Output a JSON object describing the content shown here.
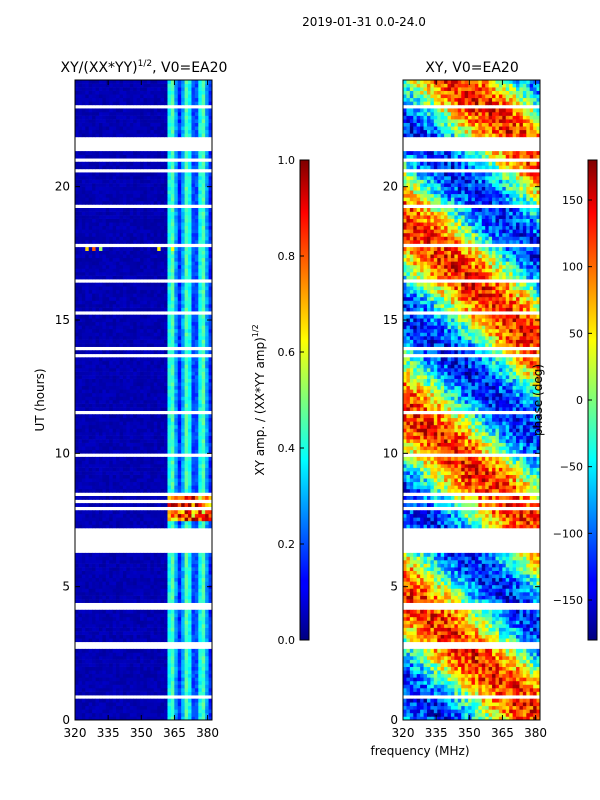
{
  "suptitle": "2019-01-31 0.0-24.0",
  "chart_data": [
    {
      "type": "heatmap",
      "panel": "left",
      "title": "XY/(XX*YY)^1/2, V0=EA20",
      "title_main": "XY/(XX*YY)",
      "title_exp": "1/2",
      "title_suffix": ", V0=EA20",
      "xlabel": "",
      "ylabel": "UT (hours)",
      "xlim": [
        320,
        382
      ],
      "ylim": [
        0,
        24
      ],
      "xticks": [
        320,
        335,
        350,
        365,
        380
      ],
      "yticks": [
        0,
        5,
        10,
        15,
        20
      ],
      "colorbar": {
        "label_main": "XY amp. / (XX*YY amp)",
        "label_exp": "1/2",
        "min": 0.0,
        "max": 1.0,
        "ticks": [
          "0.0",
          "0.2",
          "0.4",
          "0.6",
          "0.8",
          "1.0"
        ],
        "tick_values": [
          0.0,
          0.2,
          0.4,
          0.6,
          0.8,
          1.0
        ]
      },
      "notes": "Mostly near 0 (dark blue); elevated values 0.3-0.5 around 362-382 MHz; bright 0.6-1.0 band near 7.5-8.3 UT at 362-382 MHz"
    },
    {
      "type": "heatmap",
      "panel": "right",
      "title": "XY, V0=EA20",
      "xlabel": "frequency (MHz)",
      "ylabel": "",
      "xlim": [
        320,
        382
      ],
      "ylim": [
        0,
        24
      ],
      "xticks": [
        320,
        335,
        350,
        365,
        380
      ],
      "yticks": [
        0,
        5,
        10,
        15,
        20
      ],
      "colorbar": {
        "label": "phase (deg)",
        "min": -180,
        "max": 180,
        "ticks": [
          "−150",
          "−100",
          "−50",
          "0",
          "50",
          "100",
          "150"
        ],
        "tick_values": [
          -150,
          -100,
          -50,
          0,
          50,
          100,
          150
        ]
      },
      "notes": "Phase values spanning full -180 to 180 range with horizontal striping and data gaps"
    }
  ],
  "axis_labels": {
    "ut_hours": "UT (hours)",
    "frequency": "frequency (MHz)"
  }
}
